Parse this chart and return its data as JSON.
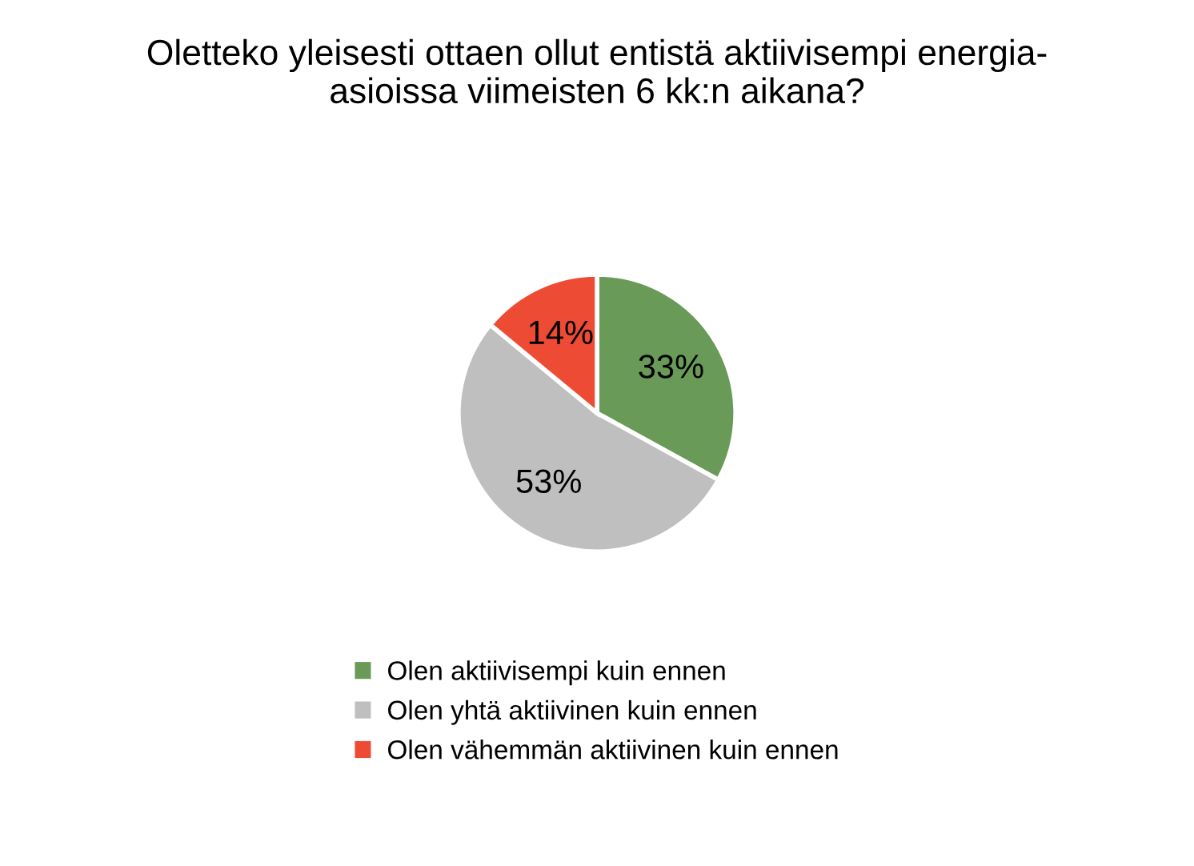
{
  "chart_data": {
    "type": "pie",
    "title": "Oletteko yleisesti ottaen ollut entistä aktiivisempi energia-\nasioissa viimeisten 6 kk:n aikana?",
    "categories": [
      "Olen aktiivisempi kuin ennen",
      "Olen yhtä aktiivinen kuin ennen",
      "Olen vähemmän aktiivinen kuin ennen"
    ],
    "values": [
      33,
      53,
      14
    ],
    "colors": [
      "#6a9a57",
      "#bfbfbf",
      "#ee4b35"
    ],
    "value_labels": [
      "33%",
      "53%",
      "14%"
    ],
    "legend": "bottom"
  }
}
